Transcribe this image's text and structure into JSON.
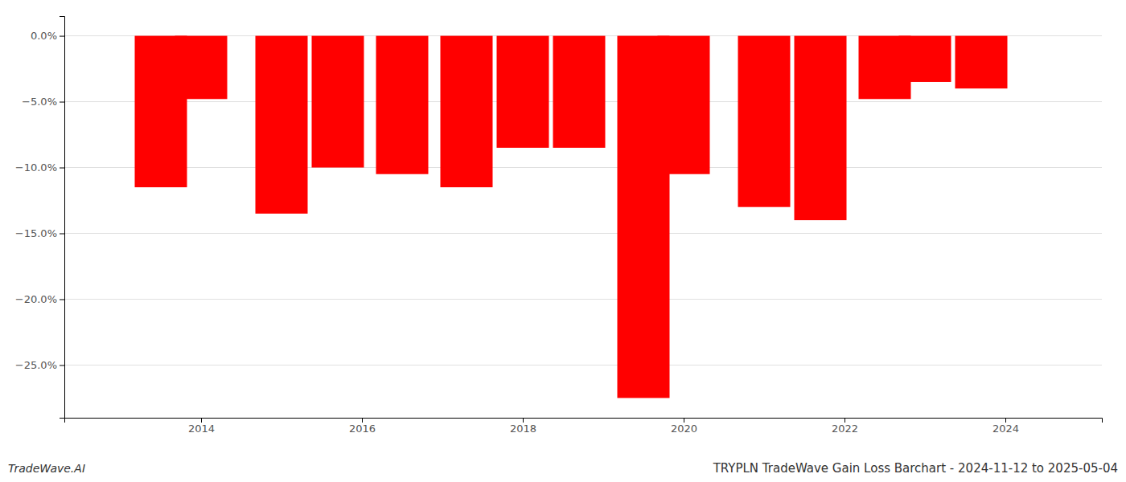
{
  "chart_data": {
    "type": "bar",
    "title": "TRYPLN TradeWave Gain Loss Barchart - 2024-11-12 to 2025-05-04",
    "annotations": [
      "TradeWave.AI"
    ],
    "x": [
      2013.5,
      2014.0,
      2015.0,
      2015.7,
      2016.5,
      2017.3,
      2018.0,
      2018.7,
      2019.5,
      2020.0,
      2021.0,
      2021.7,
      2022.5,
      2023.0,
      2023.7
    ],
    "values": [
      -11.5,
      -4.8,
      -13.5,
      -10.0,
      -10.5,
      -11.5,
      -8.5,
      -8.5,
      -27.5,
      -10.5,
      -13.0,
      -14.0,
      -4.8,
      -3.5,
      -4.0
    ],
    "color": "#ff0000",
    "xlim": [
      2012.3,
      2025.2
    ],
    "xticks": [
      2014,
      2016,
      2018,
      2020,
      2022,
      2024
    ],
    "ylim": [
      -29,
      1.5
    ],
    "yticks": [
      {
        "value": 0.0,
        "label": "0.0%"
      },
      {
        "value": -5.0,
        "label": "−5.0%"
      },
      {
        "value": -10.0,
        "label": "−10.0%"
      },
      {
        "value": -15.0,
        "label": "−15.0%"
      },
      {
        "value": -20.0,
        "label": "−20.0%"
      },
      {
        "value": -25.0,
        "label": "−25.0%"
      }
    ],
    "grid": true
  }
}
